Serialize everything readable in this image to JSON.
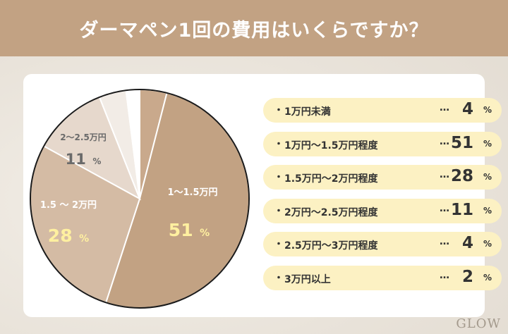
{
  "header": {
    "title": "ダーマペン1回の費用はいくらですか？"
  },
  "colors": {
    "header_bg": "#c2a283",
    "slice_51": "#c2a283",
    "slice_28": "#d4bba4",
    "slice_11": "#e6d8cc",
    "slice_4_first": "#c9a98c",
    "slice_4_last": "#f2ece6",
    "slice_2": "#ffffff",
    "highlight_value": "#fff0a0",
    "legend_bg": "#fcf1c3"
  },
  "chart_data": {
    "type": "pie",
    "slices": [
      {
        "category": "1万円未満",
        "value": 4
      },
      {
        "category": "1万円〜1.5万円程度",
        "value": 51,
        "label": "1～1.5万円",
        "value_text": "51",
        "unit": "%"
      },
      {
        "category": "1.5万円〜2万円程度",
        "value": 28,
        "label": "1.5 ～ 2万円",
        "value_text": "28",
        "unit": "%"
      },
      {
        "category": "2万円〜2.5万円程度",
        "value": 11,
        "label": "2〜2.5万円",
        "value_text": "11",
        "unit": "%"
      },
      {
        "category": "2.5万円〜3万円程度",
        "value": 4
      },
      {
        "category": "3万円以上",
        "value": 2
      }
    ]
  },
  "legend": {
    "bullet": "・",
    "dots": "…",
    "unit": "%",
    "items": [
      {
        "label": "1万円未満",
        "value": "4"
      },
      {
        "label": "1万円〜1.5万円程度",
        "value": "51"
      },
      {
        "label": "1.5万円〜2万円程度",
        "value": "28"
      },
      {
        "label": "2万円〜2.5万円程度",
        "value": "11"
      },
      {
        "label": "2.5万円〜3万円程度",
        "value": "4"
      },
      {
        "label": "3万円以上",
        "value": "2"
      }
    ]
  },
  "watermark": "GLOW"
}
